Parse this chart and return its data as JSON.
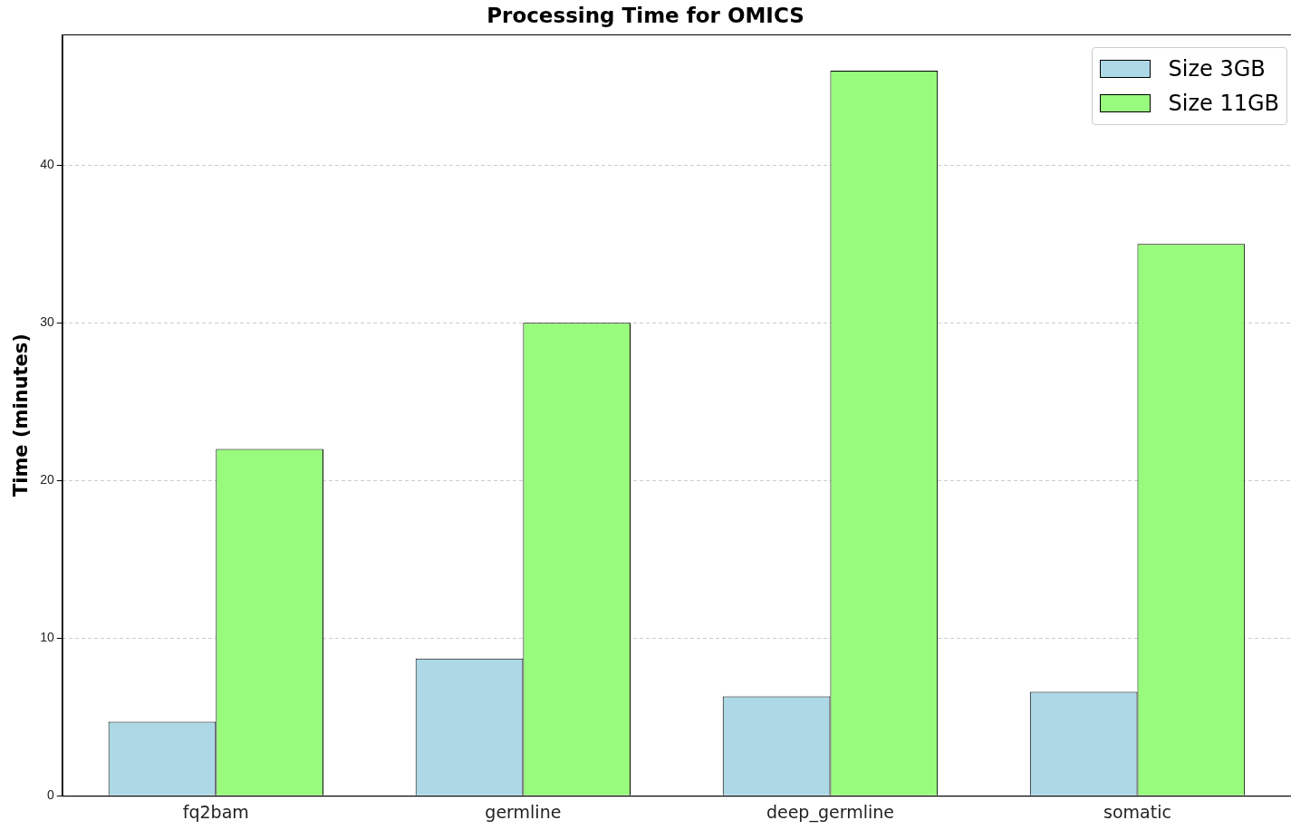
{
  "chart_data": {
    "type": "bar",
    "title": "Processing Time for OMICS",
    "ylabel": "Time (minutes)",
    "categories": [
      "fq2bam",
      "germline",
      "deep_germline",
      "somatic"
    ],
    "series": [
      {
        "name": "Size 3GB",
        "color": "#add8e6",
        "values": [
          4.7,
          8.7,
          6.3,
          6.6
        ]
      },
      {
        "name": "Size 11GB",
        "color": "#98fb7d",
        "values": [
          22,
          30,
          46,
          35
        ]
      }
    ],
    "ylim": [
      0,
      48.3
    ],
    "yticks": [
      0,
      10,
      20,
      30,
      40
    ],
    "grid": "y",
    "legend": "top right"
  }
}
